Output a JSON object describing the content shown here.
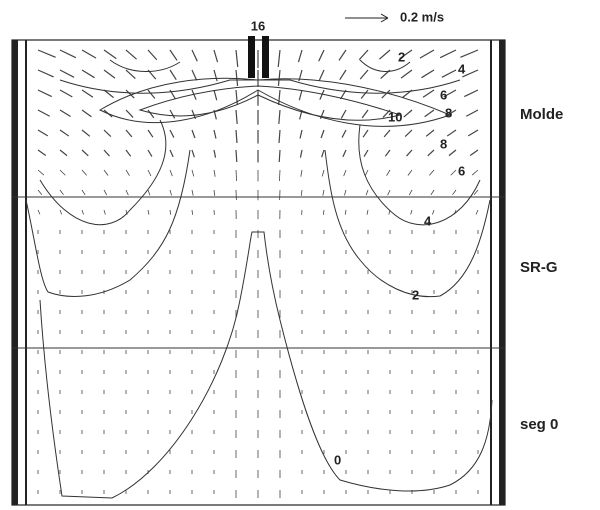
{
  "scale": {
    "label": "0.2 m/s"
  },
  "nozzle_label": "16",
  "zones": [
    "Molde",
    "SR-G",
    "seg 0"
  ],
  "contour_labels": [
    "2",
    "4",
    "6",
    "8",
    "10",
    "8",
    "6",
    "4",
    "2",
    "0"
  ]
}
